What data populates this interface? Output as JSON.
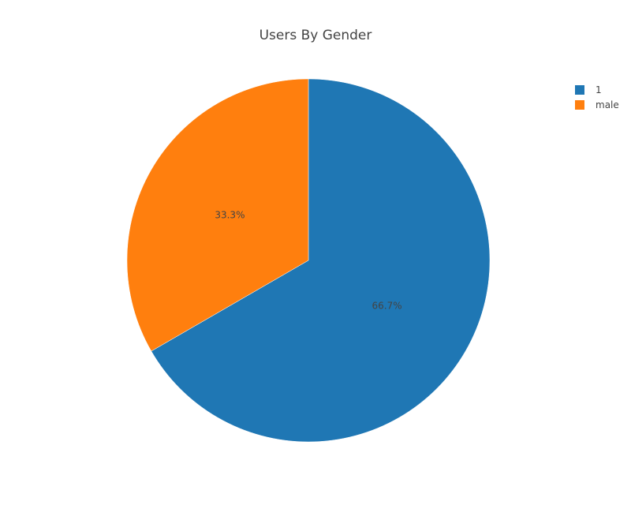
{
  "chart_data": {
    "type": "pie",
    "title": "Users By Gender",
    "categories": [
      "1",
      "male"
    ],
    "values": [
      2,
      1
    ],
    "percent_labels": [
      "66.7%",
      "33.3%"
    ],
    "colors": [
      "#1f77b4",
      "#ff7f0e"
    ],
    "legend": {
      "position": "top-right",
      "entries": [
        "1",
        "male"
      ]
    },
    "direction": "clockwise",
    "start": "top"
  }
}
